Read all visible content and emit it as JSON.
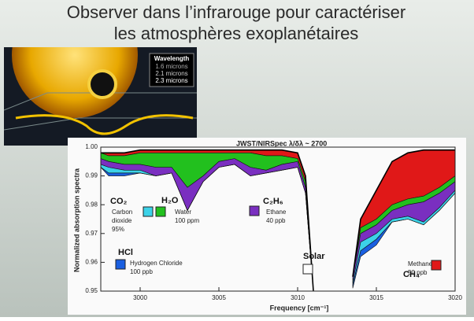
{
  "slide": {
    "title": [
      "Observer dans l’infrarouge pour caractériser",
      "les atmosphères exoplanétaires"
    ]
  },
  "image": {
    "inset": {
      "title": "Wavelength",
      "items": [
        "1.6 microns",
        "2.1 microns",
        "2.3 microns"
      ]
    }
  },
  "chart_data": {
    "type": "area",
    "title": "JWST/NIRSpec λ/δλ ~ 2700",
    "x_label": "Frequency [cm⁻¹]",
    "y_label": "Normalized absorption spectra",
    "xlim": [
      2997.5,
      3020
    ],
    "ylim": [
      0.95,
      1.0
    ],
    "xticks": [
      3000,
      3005,
      3010,
      3015,
      3020
    ],
    "yticks": [
      0.95,
      0.96,
      0.97,
      0.98,
      0.99,
      {
        "value": 1,
        "label": "1.00"
      }
    ],
    "x": [
      2997.5,
      2998,
      2999,
      3000,
      3001,
      3002,
      3003,
      3004,
      3005,
      3006,
      3007,
      3008,
      3009,
      3010,
      3010.5,
      3011,
      3012,
      3013.5,
      3014,
      3015,
      3016,
      3017,
      3018,
      3019,
      3020
    ],
    "series": [
      {
        "name": "Solar",
        "color": "#ffffff",
        "values": [
          0.998,
          0.998,
          0.998,
          0.999,
          0.999,
          0.999,
          0.999,
          0.999,
          0.999,
          0.999,
          0.999,
          0.999,
          0.999,
          0.998,
          0.99,
          0.95,
          null,
          0.955,
          0.975,
          0.985,
          0.995,
          0.998,
          0.999,
          0.999,
          0.999
        ]
      },
      {
        "name": "CH₄",
        "label": [
          "Methane",
          "50 ppb"
        ],
        "color": "#e01818",
        "values": [
          0.998,
          0.997,
          0.997,
          0.998,
          0.998,
          0.998,
          0.998,
          0.998,
          0.998,
          0.998,
          0.998,
          0.997,
          0.997,
          0.996,
          0.988,
          0.95,
          null,
          0.955,
          0.972,
          0.975,
          0.98,
          0.982,
          0.983,
          0.986,
          0.99
        ]
      },
      {
        "name": "H₂O",
        "label": [
          "Water",
          "100 ppm"
        ],
        "color": "#22c01e",
        "values": [
          0.996,
          0.995,
          0.994,
          0.994,
          0.993,
          0.993,
          0.986,
          0.99,
          0.995,
          0.996,
          0.993,
          0.992,
          0.994,
          0.995,
          0.986,
          0.95,
          null,
          0.955,
          0.97,
          0.973,
          0.978,
          0.98,
          0.981,
          0.984,
          0.988
        ]
      },
      {
        "name": "C₂H₆",
        "label": [
          "Ethane",
          "40 ppb"
        ],
        "color": "#7a2fc0",
        "values": [
          0.994,
          0.993,
          0.992,
          0.992,
          0.99,
          0.991,
          0.978,
          0.988,
          0.993,
          0.994,
          0.99,
          0.991,
          0.992,
          0.993,
          0.984,
          0.95,
          null,
          0.953,
          0.967,
          0.97,
          0.975,
          0.976,
          0.974,
          0.979,
          0.985
        ]
      },
      {
        "name": "CO₂",
        "label": [
          "Carbon",
          "dioxide",
          "95%"
        ],
        "color": "#3cd2e8",
        "values": [
          0.993,
          0.991,
          0.991,
          0.991,
          0.99,
          0.991,
          0.978,
          0.988,
          0.993,
          0.994,
          0.99,
          0.991,
          0.992,
          0.993,
          0.984,
          0.95,
          null,
          0.952,
          0.964,
          0.968,
          0.974,
          0.975,
          0.973,
          0.978,
          0.984
        ]
      },
      {
        "name": "HCl",
        "label": [
          "Hydrogen Chloride",
          "100 ppb"
        ],
        "color": "#1a5fe0",
        "values": [
          0.993,
          0.99,
          0.99,
          0.991,
          0.99,
          0.991,
          0.978,
          0.988,
          0.993,
          0.994,
          0.99,
          0.991,
          0.992,
          0.993,
          0.984,
          0.95,
          null,
          0.951,
          0.962,
          0.966,
          0.974,
          0.975,
          0.973,
          0.978,
          0.984
        ]
      }
    ]
  }
}
